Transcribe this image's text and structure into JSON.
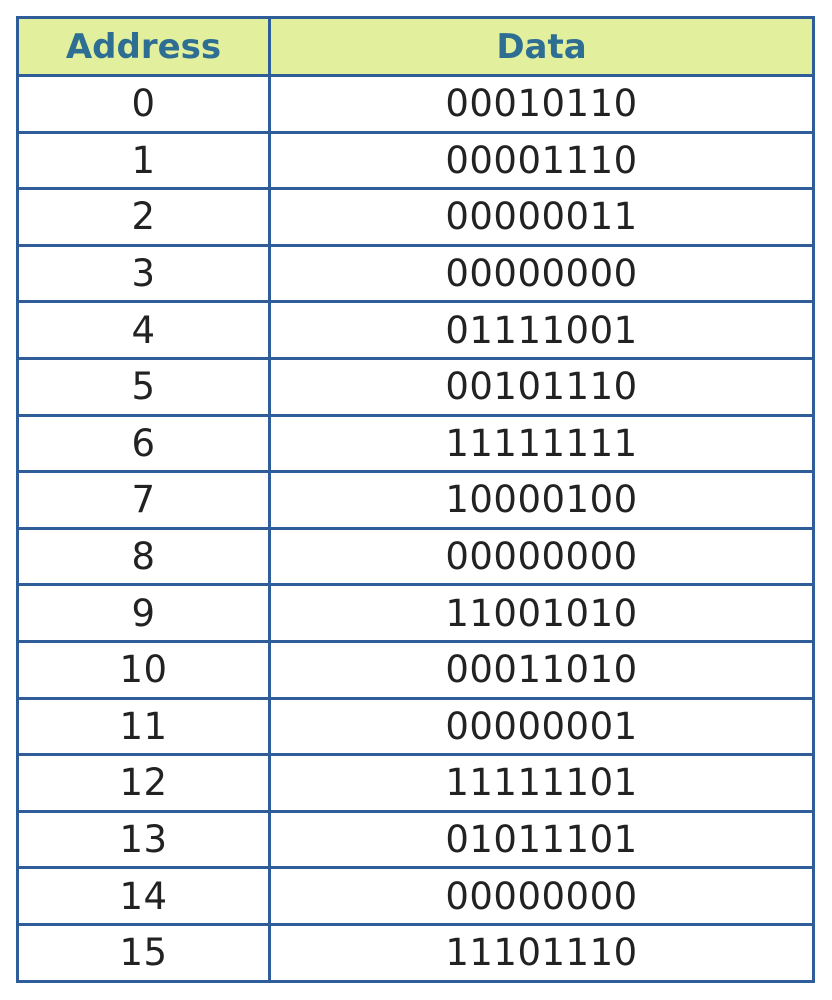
{
  "table": {
    "headers": {
      "address": "Address",
      "data": "Data"
    },
    "rows": [
      {
        "address": "0",
        "data": "00010110"
      },
      {
        "address": "1",
        "data": "00001110"
      },
      {
        "address": "2",
        "data": "00000011"
      },
      {
        "address": "3",
        "data": "00000000"
      },
      {
        "address": "4",
        "data": "01111001"
      },
      {
        "address": "5",
        "data": "00101110"
      },
      {
        "address": "6",
        "data": "11111111"
      },
      {
        "address": "7",
        "data": "10000100"
      },
      {
        "address": "8",
        "data": "00000000"
      },
      {
        "address": "9",
        "data": "11001010"
      },
      {
        "address": "10",
        "data": "00011010"
      },
      {
        "address": "11",
        "data": "00000001"
      },
      {
        "address": "12",
        "data": "11111101"
      },
      {
        "address": "13",
        "data": "01011101"
      },
      {
        "address": "14",
        "data": "00000000"
      },
      {
        "address": "15",
        "data": "11101110"
      }
    ]
  },
  "colors": {
    "header_background": "#e2f09d",
    "header_text": "#2e6e93",
    "border": "#2f5d9a",
    "cell_text": "#222222"
  }
}
